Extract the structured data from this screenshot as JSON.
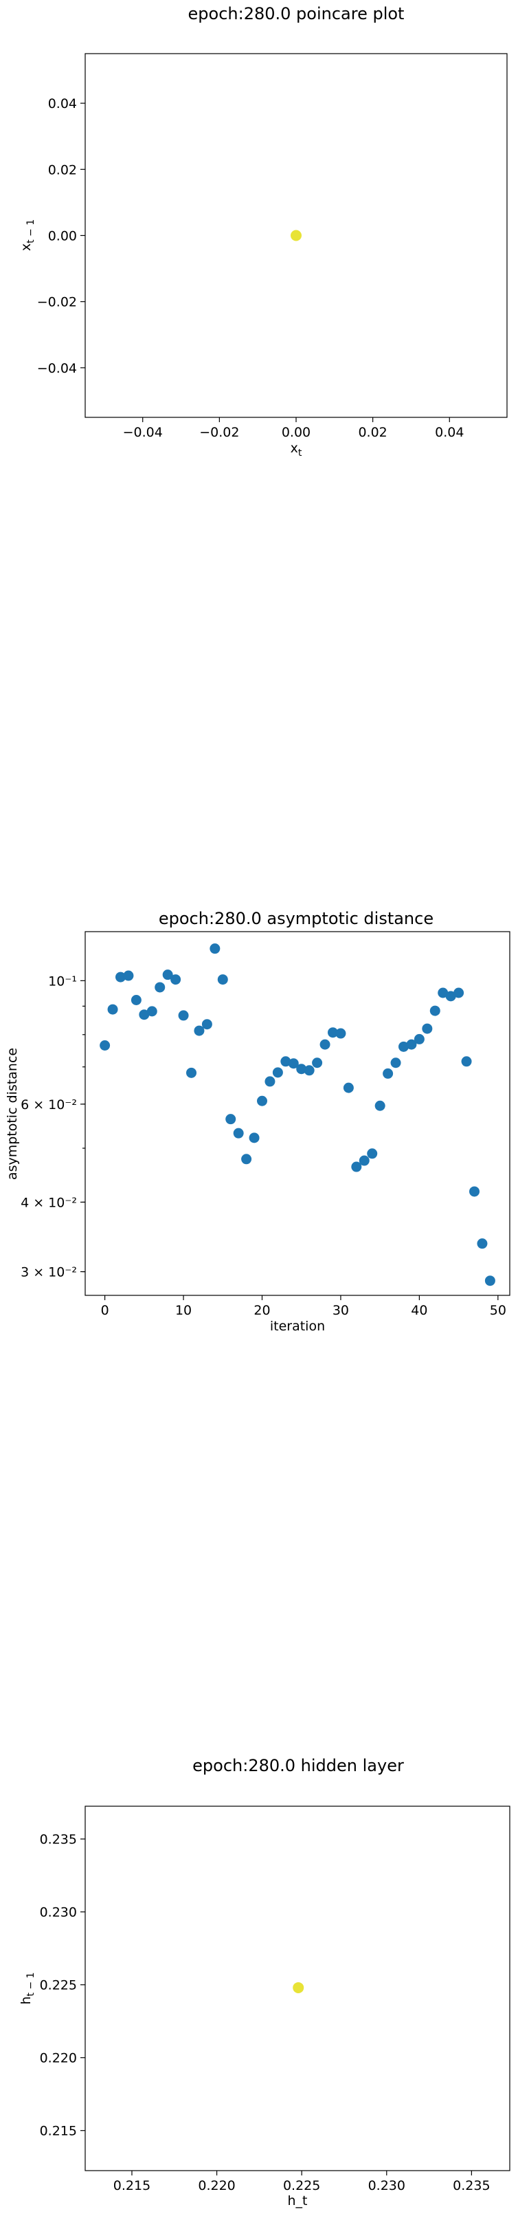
{
  "chart_data": [
    {
      "type": "scatter",
      "title": "epoch:280.0 poincare plot",
      "xlabel": "x_t",
      "ylabel": "x_{t-1}",
      "xlim": [
        -0.055,
        0.055
      ],
      "ylim": [
        -0.055,
        0.055
      ],
      "xticks": [
        -0.04,
        -0.02,
        0.0,
        0.02,
        0.04
      ],
      "xtick_labels": [
        "−0.04",
        "−0.02",
        "0.00",
        "0.02",
        "0.04"
      ],
      "yticks": [
        -0.04,
        -0.02,
        0.0,
        0.02,
        0.04
      ],
      "ytick_labels": [
        "−0.04",
        "−0.02",
        "0.00",
        "0.02",
        "0.04"
      ],
      "points": [
        {
          "x": 0.0,
          "y": 0.0
        }
      ],
      "marker_color": "#e8e337"
    },
    {
      "type": "scatter",
      "title": "epoch:280.0 asymptotic distance",
      "xlabel": "iteration",
      "ylabel": "asymptotic distance",
      "yscale": "log",
      "xlim": [
        -2.5,
        51.5
      ],
      "ylim": [
        0.0272,
        0.1225
      ],
      "xticks": [
        0,
        10,
        20,
        30,
        40,
        50
      ],
      "xtick_labels": [
        "0",
        "10",
        "20",
        "30",
        "40",
        "50"
      ],
      "yticks": [
        0.1,
        0.06,
        0.04,
        0.03
      ],
      "ytick_labels": [
        "10⁻¹",
        "6 × 10⁻²",
        "4 × 10⁻²",
        "3 × 10⁻²"
      ],
      "x": [
        0,
        1,
        2,
        3,
        4,
        5,
        6,
        7,
        8,
        9,
        10,
        11,
        12,
        13,
        14,
        15,
        16,
        17,
        18,
        19,
        20,
        21,
        22,
        23,
        24,
        25,
        26,
        27,
        28,
        29,
        30,
        31,
        32,
        33,
        34,
        35,
        36,
        37,
        38,
        39,
        40,
        41,
        42,
        43,
        44,
        45,
        46,
        47,
        48,
        49
      ],
      "y": [
        0.0765,
        0.0888,
        0.1015,
        0.1021,
        0.0923,
        0.0869,
        0.0881,
        0.0973,
        0.1025,
        0.1005,
        0.0866,
        0.0683,
        0.0813,
        0.0835,
        0.1142,
        0.1005,
        0.0564,
        0.0532,
        0.0478,
        0.0522,
        0.0608,
        0.0659,
        0.0684,
        0.0716,
        0.071,
        0.0694,
        0.069,
        0.0712,
        0.0768,
        0.0807,
        0.0804,
        0.0642,
        0.0463,
        0.0475,
        0.0489,
        0.0596,
        0.0681,
        0.0712,
        0.0761,
        0.0768,
        0.0785,
        0.082,
        0.0883,
        0.0951,
        0.0938,
        0.0951,
        0.0716,
        0.0418,
        0.0337,
        0.0289
      ],
      "marker_color": "#1f77b4"
    },
    {
      "type": "scatter",
      "title": "epoch:280.0 hidden layer",
      "xlabel": "h_t",
      "ylabel": "h_{t-1}",
      "xlim": [
        0.21225,
        0.23725
      ],
      "ylim": [
        0.21225,
        0.23725
      ],
      "xticks": [
        0.215,
        0.22,
        0.225,
        0.23,
        0.235
      ],
      "xtick_labels": [
        "0.215",
        "0.220",
        "0.225",
        "0.230",
        "0.235"
      ],
      "yticks": [
        0.215,
        0.22,
        0.225,
        0.23,
        0.235
      ],
      "ytick_labels": [
        "0.215",
        "0.220",
        "0.225",
        "0.230",
        "0.235"
      ],
      "points": [
        {
          "x": 0.2248,
          "y": 0.2248
        }
      ],
      "marker_color": "#e8e337"
    }
  ]
}
